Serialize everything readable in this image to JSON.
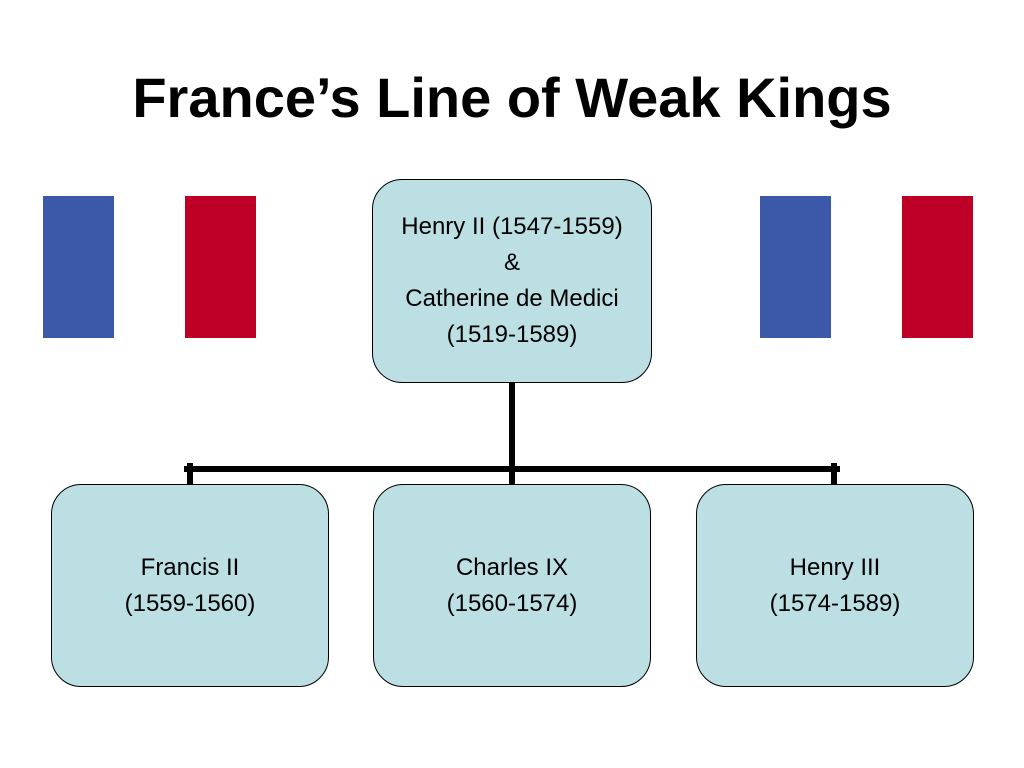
{
  "title": "France’s Line of Weak Kings",
  "colors": {
    "node_fill": "#BCDFE3",
    "node_border": "#000000",
    "connector": "#000000",
    "flag_blue": "#3B59A8",
    "flag_white": "#FFFFFF",
    "flag_red": "#BF0026"
  },
  "flags": [
    {
      "icon": "french-flag-icon",
      "stripes": [
        "blue",
        "white",
        "red"
      ]
    },
    {
      "icon": "french-flag-icon",
      "stripes": [
        "blue",
        "white",
        "red"
      ]
    }
  ],
  "tree": {
    "root": {
      "lines": [
        "Henry II (1547-1559)",
        "&",
        "Catherine de Medici",
        "(1519-1589)"
      ]
    },
    "children": [
      {
        "lines": [
          "Francis II",
          "(1559-1560)"
        ]
      },
      {
        "lines": [
          "Charles IX",
          "(1560-1574)"
        ]
      },
      {
        "lines": [
          "Henry III",
          "(1574-1589)"
        ]
      }
    ]
  }
}
